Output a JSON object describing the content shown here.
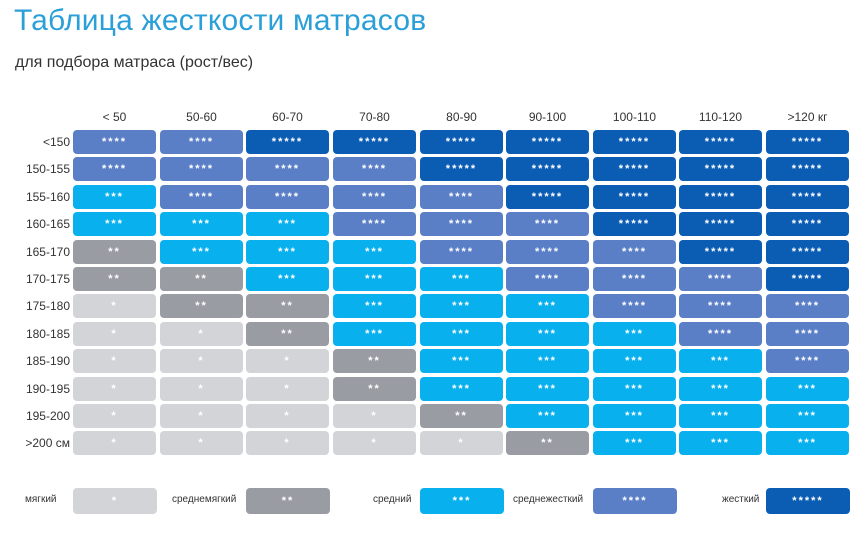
{
  "title": "Таблица жесткости матрасов",
  "subtitle": "для подбора матраса (рост/вес)",
  "columns": [
    "< 50",
    "50-60",
    "60-70",
    "70-80",
    "80-90",
    "90-100",
    "100-110",
    "110-120",
    ">120 кг"
  ],
  "rows": [
    "<150",
    "150-155",
    "155-160",
    "160-165",
    "165-170",
    "170-175",
    "175-180",
    "180-185",
    "185-190",
    "190-195",
    "195-200",
    ">200 см"
  ],
  "cells": [
    [
      "****",
      "****",
      "*****",
      "*****",
      "*****",
      "*****",
      "*****",
      "*****",
      "*****"
    ],
    [
      "****",
      "****",
      "****",
      "****",
      "*****",
      "*****",
      "*****",
      "*****",
      "*****"
    ],
    [
      "***",
      "****",
      "****",
      "****",
      "****",
      "*****",
      "*****",
      "*****",
      "*****"
    ],
    [
      "***",
      "***",
      "***",
      "****",
      "****",
      "****",
      "*****",
      "*****",
      "*****"
    ],
    [
      "**",
      "***",
      "***",
      "***",
      "****",
      "****",
      "****",
      "*****",
      "*****"
    ],
    [
      "**",
      "**",
      "***",
      "***",
      "***",
      "****",
      "****",
      "****",
      "*****"
    ],
    [
      "*",
      "**",
      "**",
      "***",
      "***",
      "***",
      "****",
      "****",
      "****"
    ],
    [
      "*",
      "*",
      "**",
      "***",
      "***",
      "***",
      "***",
      "****",
      "****"
    ],
    [
      "*",
      "*",
      "*",
      "**",
      "***",
      "***",
      "***",
      "***",
      "****"
    ],
    [
      "*",
      "*",
      "*",
      "**",
      "***",
      "***",
      "***",
      "***",
      "***"
    ],
    [
      "*",
      "*",
      "*",
      "*",
      "**",
      "***",
      "***",
      "***",
      "***"
    ],
    [
      "*",
      "*",
      "*",
      "*",
      "*",
      "**",
      "***",
      "***",
      "***"
    ]
  ],
  "legend": [
    {
      "label": "мягкий",
      "stars": "*"
    },
    {
      "label": "среднемягкий",
      "stars": "**"
    },
    {
      "label": "средний",
      "stars": "***"
    },
    {
      "label": "среднежесткий",
      "stars": "****"
    },
    {
      "label": "жесткий",
      "stars": "*****"
    }
  ],
  "colors": {
    "1": "#d2d4d8",
    "2": "#9a9ca3",
    "3": "#08b0ee",
    "4": "#5a7fc6",
    "5": "#0b5cb3",
    "title": "#2a9fd8"
  }
}
